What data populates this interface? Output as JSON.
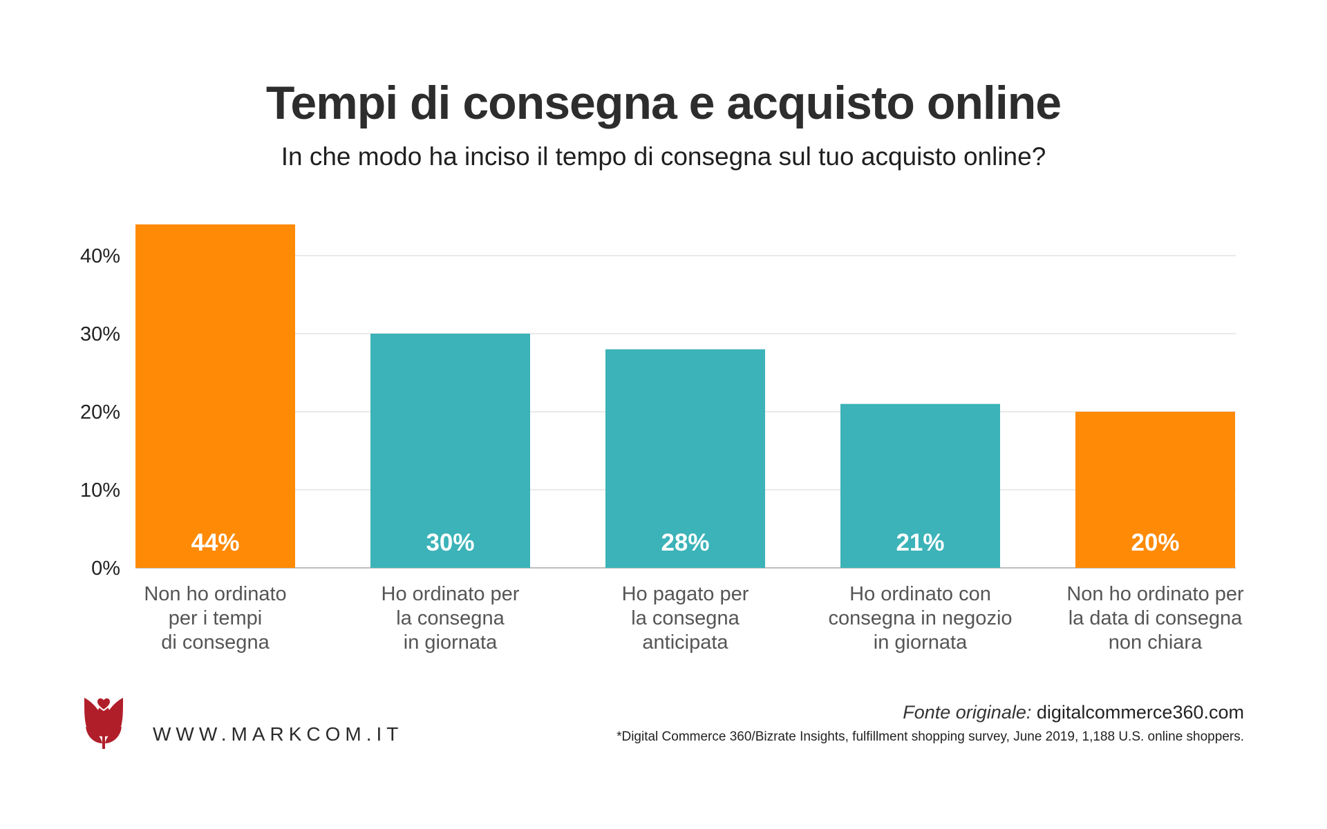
{
  "title": "Tempi di consegna e acquisto online",
  "subtitle": "In che modo ha inciso il tempo di consegna sul tuo acquisto online?",
  "chart_data": {
    "type": "bar",
    "categories": [
      [
        "Non ho ordinato",
        "per i tempi",
        "di consegna"
      ],
      [
        "Ho ordinato per",
        "la consegna",
        "in giornata"
      ],
      [
        "Ho pagato per",
        "la consegna",
        "anticipata"
      ],
      [
        "Ho ordinato con",
        "consegna in negozio",
        "in giornata"
      ],
      [
        "Non ho ordinato per",
        "la data di consegna",
        "non chiara"
      ]
    ],
    "values": [
      44,
      30,
      28,
      21,
      20
    ],
    "data_labels": [
      "44%",
      "30%",
      "28%",
      "21%",
      "20%"
    ],
    "colors": [
      "#FF8A05",
      "#3BB3B8",
      "#3BB3B8",
      "#3BB3B8",
      "#FF8A05"
    ],
    "yticks": [
      0,
      10,
      20,
      30,
      40
    ],
    "ytick_labels": [
      "0%",
      "10%",
      "20%",
      "30%",
      "40%"
    ],
    "ylim": [
      0,
      45
    ],
    "grid": true
  },
  "footer": {
    "logo_text": "WWW.MARKCOM.IT",
    "source_prefix": "Fonte originale:",
    "source": "digitalcommerce360.com",
    "note": "*Digital Commerce 360/Bizrate Insights, fulfillment shopping survey, June 2019, 1,188 U.S. online shoppers."
  }
}
